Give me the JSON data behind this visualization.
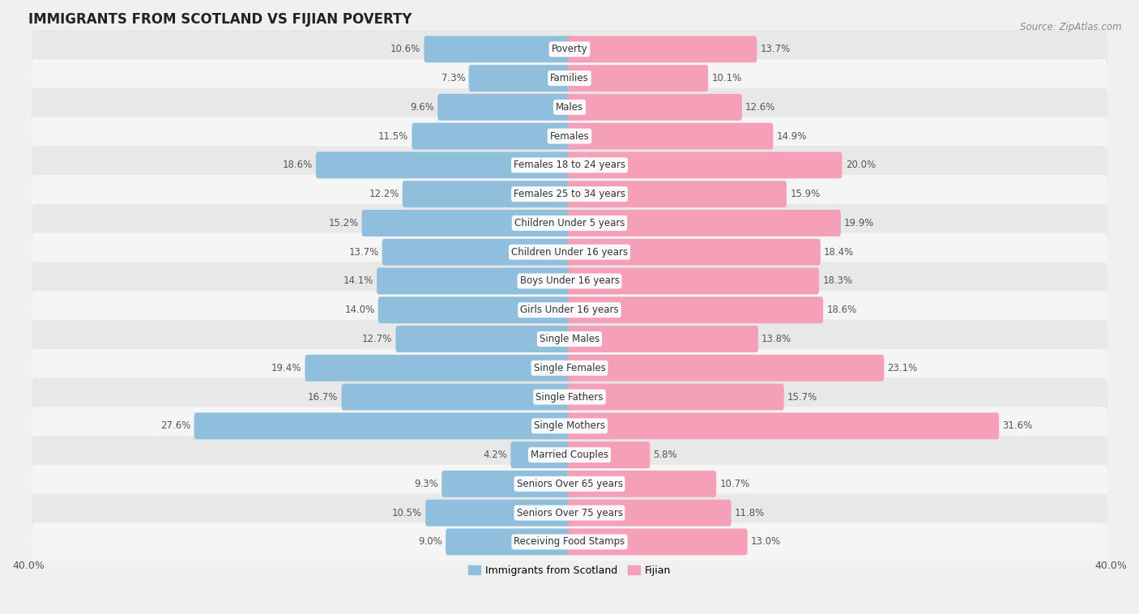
{
  "title": "IMMIGRANTS FROM SCOTLAND VS FIJIAN POVERTY",
  "source": "Source: ZipAtlas.com",
  "categories": [
    "Poverty",
    "Families",
    "Males",
    "Females",
    "Females 18 to 24 years",
    "Females 25 to 34 years",
    "Children Under 5 years",
    "Children Under 16 years",
    "Boys Under 16 years",
    "Girls Under 16 years",
    "Single Males",
    "Single Females",
    "Single Fathers",
    "Single Mothers",
    "Married Couples",
    "Seniors Over 65 years",
    "Seniors Over 75 years",
    "Receiving Food Stamps"
  ],
  "scotland_values": [
    10.6,
    7.3,
    9.6,
    11.5,
    18.6,
    12.2,
    15.2,
    13.7,
    14.1,
    14.0,
    12.7,
    19.4,
    16.7,
    27.6,
    4.2,
    9.3,
    10.5,
    9.0
  ],
  "fijian_values": [
    13.7,
    10.1,
    12.6,
    14.9,
    20.0,
    15.9,
    19.9,
    18.4,
    18.3,
    18.6,
    13.8,
    23.1,
    15.7,
    31.6,
    5.8,
    10.7,
    11.8,
    13.0
  ],
  "scotland_color": "#8fbfdc",
  "fijian_color": "#f4a0b8",
  "background_color": "#f0f0f0",
  "row_color": "#e8e8e8",
  "row_color_alt": "#f5f5f5",
  "xlim": 40.0,
  "bar_height": 0.62,
  "legend_labels": [
    "Immigrants from Scotland",
    "Fijian"
  ],
  "label_color_outside": "#555555",
  "label_color_inside": "#ffffff",
  "cat_label_fontsize": 8.5,
  "value_fontsize": 8.5
}
